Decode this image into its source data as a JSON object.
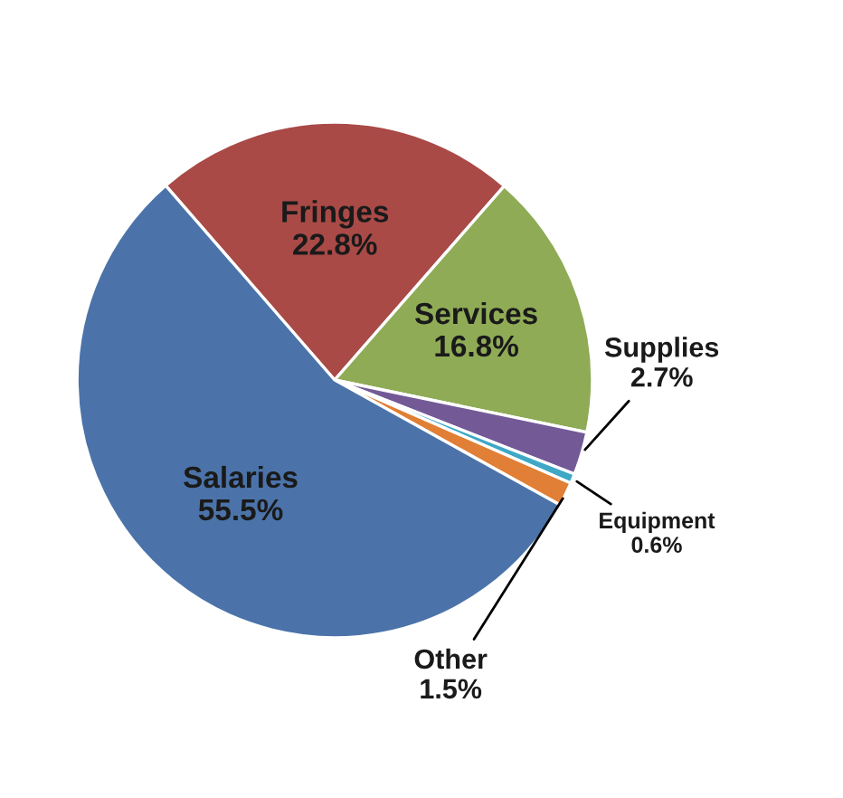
{
  "chart_data": {
    "type": "pie",
    "categories": [
      "Fringes",
      "Services",
      "Supplies",
      "Equipment",
      "Other",
      "Salaries"
    ],
    "values": [
      22.8,
      16.8,
      2.7,
      0.6,
      1.5,
      55.5
    ],
    "value_labels": [
      "22.8%",
      "16.8%",
      "2.7%",
      "0.6%",
      "1.5%",
      "55.5%"
    ],
    "colors": [
      "#a94a47",
      "#8fab56",
      "#735a97",
      "#3fa8c6",
      "#e07f35",
      "#4b73a9"
    ]
  }
}
